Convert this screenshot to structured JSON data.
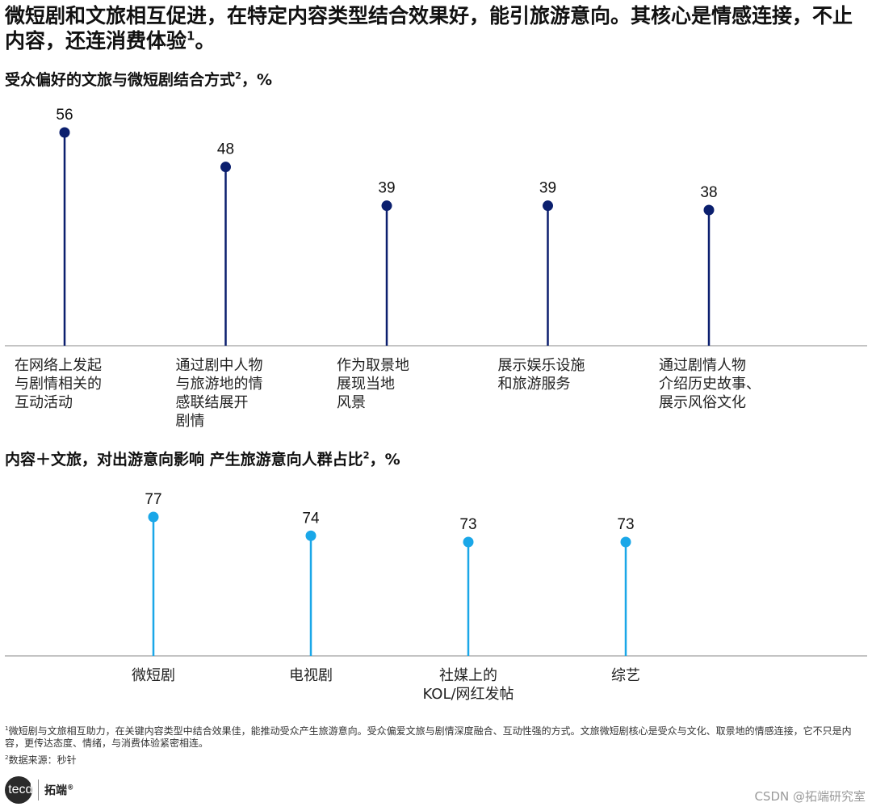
{
  "headline": {
    "text": "微短剧和文旅相互促进，在特定内容类型结合效果好，能引旅游意向。其核心是情感连接，不止内容，还连消费体验",
    "sup": "1",
    "end": "。"
  },
  "subtitle1": {
    "text": "受众偏好的文旅与微短剧结合方式",
    "sup": "2",
    "unit": "，%"
  },
  "subtitle2": {
    "text": "内容＋文旅，对出游意向影响 产生旅游意向人群占比",
    "sup": "2",
    "unit": "，%"
  },
  "chart_data": [
    {
      "type": "lollipop",
      "title": "受众偏好的文旅与微短剧结合方式²，%",
      "categories": [
        [
          "在网络上发起",
          "与剧情相关的",
          "互动活动"
        ],
        [
          "通过剧中人物",
          "与旅游地的情",
          "感联结展开",
          "剧情"
        ],
        [
          "作为取景地",
          "展现当地",
          "风景"
        ],
        [
          "展示娱乐设施",
          "和旅游服务"
        ],
        [
          "通过剧情人物",
          "介绍历史故事、",
          "展示风俗文化"
        ]
      ],
      "values": [
        56,
        48,
        39,
        39,
        38
      ],
      "color": "#0b1f6e",
      "grid": false
    },
    {
      "type": "lollipop",
      "title": "内容＋文旅，对出游意向影响 产生旅游意向人群占比²，%",
      "categories": [
        [
          "微短剧"
        ],
        [
          "电视剧"
        ],
        [
          "社媒上的",
          "KOL/网红发帖"
        ],
        [
          "综艺"
        ]
      ],
      "values": [
        77,
        74,
        73,
        73
      ],
      "color": "#1aa7e8",
      "grid": false
    }
  ],
  "footnotes": {
    "note1": "微短剧与文旅相互助力，在关键内容类型中结合效果佳，能推动受众产生旅游意向。受众偏爱文旅与剧情深度融合、互动性强的方式。文旅微短剧核心是受众与文化、取景地的情感连接，它不只是内容，更传达态度、情绪，与消费体验紧密相连。",
    "note1_sup": "1",
    "note2": "数据来源：秒针",
    "note2_sup": "2"
  },
  "logo": {
    "mark": "tecdat",
    "cn": "拓端",
    "reg": "®"
  },
  "watermark": "CSDN @拓端研究室"
}
